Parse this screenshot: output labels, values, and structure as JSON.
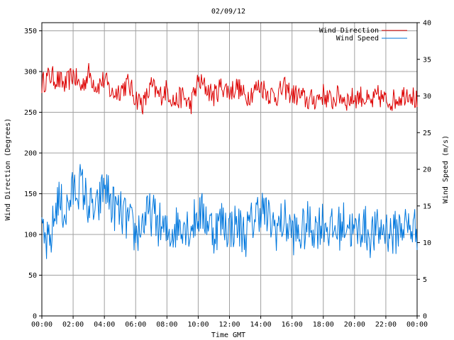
{
  "chart_data": {
    "type": "line",
    "title": "02/09/12",
    "xlabel": "Time GMT",
    "ylabel_left": "Wind Direction (Degrees)",
    "ylabel_right": "Wind Speed (m/s)",
    "x_ticks": [
      "00:00",
      "02:00",
      "04:00",
      "06:00",
      "08:00",
      "10:00",
      "12:00",
      "14:00",
      "16:00",
      "18:00",
      "20:00",
      "22:00",
      "00:00"
    ],
    "xlim_hours": [
      0,
      24
    ],
    "ylim_left": [
      0,
      360
    ],
    "ylim_right": [
      0,
      40
    ],
    "y_ticks_left": [
      "0",
      "50",
      "100",
      "150",
      "200",
      "250",
      "300",
      "350"
    ],
    "y_ticks_right": [
      "0",
      "5",
      "10",
      "15",
      "20",
      "25",
      "30",
      "35",
      "40"
    ],
    "grid": true,
    "legend_position": "top-right",
    "series": [
      {
        "name": "Wind Direction",
        "axis": "left",
        "color": "#dd0000",
        "x_hours": [
          0,
          0.5,
          1,
          1.5,
          2,
          2.5,
          3,
          3.5,
          4,
          4.5,
          5,
          5.5,
          6,
          6.5,
          7,
          7.5,
          8,
          8.5,
          9,
          9.5,
          10,
          10.5,
          11,
          11.5,
          12,
          12.5,
          13,
          13.5,
          14,
          14.5,
          15,
          15.5,
          16,
          16.5,
          17,
          17.5,
          18,
          18.5,
          19,
          19.5,
          20,
          20.5,
          21,
          21.5,
          22,
          22.5,
          23,
          23.5,
          24
        ],
        "values": [
          285,
          295,
          290,
          283,
          297,
          280,
          298,
          282,
          290,
          272,
          278,
          285,
          268,
          260,
          282,
          270,
          278,
          262,
          270,
          258,
          288,
          280,
          270,
          283,
          275,
          282,
          268,
          276,
          283,
          273,
          270,
          280,
          272,
          270,
          264,
          266,
          272,
          263,
          271,
          265,
          268,
          270,
          260,
          270,
          264,
          265,
          270,
          276,
          262
        ]
      },
      {
        "name": "Wind Speed",
        "axis": "right",
        "color": "#0077dd",
        "x_hours": [
          0,
          0.5,
          1,
          1.5,
          2,
          2.5,
          3,
          3.5,
          4,
          4.5,
          5,
          5.5,
          6,
          6.5,
          7,
          7.5,
          8,
          8.5,
          9,
          9.5,
          10,
          10.5,
          11,
          11.5,
          12,
          12.5,
          13,
          13.5,
          14,
          14.5,
          15,
          15.5,
          16,
          16.5,
          17,
          17.5,
          18,
          18.5,
          19,
          19.5,
          20,
          20.5,
          21,
          21.5,
          22,
          22.5,
          23,
          23.5,
          24
        ],
        "values": [
          10.5,
          9.5,
          16,
          14,
          17,
          18,
          15,
          14,
          18,
          15,
          14,
          13,
          11,
          13,
          14,
          12.5,
          11,
          12,
          13,
          12,
          14,
          13.5,
          11.5,
          13,
          12,
          12.5,
          11,
          13,
          15,
          13,
          12,
          13,
          11.5,
          11,
          12.5,
          12,
          13,
          11.5,
          12,
          13,
          11,
          12.5,
          11,
          11.5,
          12,
          11,
          12.5,
          12,
          12
        ]
      }
    ]
  }
}
